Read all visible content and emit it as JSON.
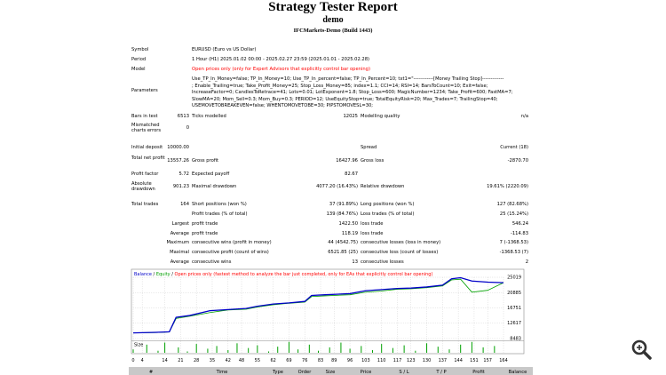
{
  "header": {
    "title": "Strategy Tester Report",
    "name": "demo",
    "server": "IFCMarkets-Demo (Build 1443)"
  },
  "rows": [
    [
      "Symbol",
      "EURUSD (Euro vs US Dollar)"
    ],
    [
      "Period",
      "1 Hour (H1) 2025.01.02 00:00 - 2025.02.27 23:59 (2025.01.01 - 2025.02.28)"
    ],
    [
      "Model",
      "Open prices only (only for Expert Advisors that explicitly control bar opening)"
    ],
    [
      "Parameters",
      "Use_TP_In_Money=false; TP_In_Money=10; Use_TP_In_percent=false; TP_In_Percent=10; txt1=\"------------[Money Trailing Stop]-------------",
      "; Enable_Trailing=true; Take_Profit_Money=25; Stop_Loss_Money=85; index=1.1; CCI=14; RSI=14; BarsToCount=10; Exit=false;",
      "IncreaseFactor=0; CandlesToRetrace=41; Lots=0.01; LotExponent=1.8; Stop_Loss=600; MagicNumber=1234; Take_Profit=600; FastMA=7;",
      "SlowMA=20; Mom_Sell=0.3; Mom_Buy=0.3; PERIOD=12; UseEquityStop=true; TotalEquityRisk=20; Max_Trades=7; TrailingStop=40;",
      "USEMOVETOBREAKEVEN=false; WHENTOMOVETOBE=30; PIPSTOMOVESL=30;"
    ],
    [
      "Bars in test",
      "6513",
      "Ticks modelled",
      "12025",
      "Modelling quality",
      "n/a"
    ],
    [
      "Mismatched charts errors",
      "0"
    ],
    [
      "Initial deposit",
      "10000.00",
      "Spread",
      "Current (18)"
    ],
    [
      "Total net profit",
      "13557.26",
      "Gross profit",
      "16427.96",
      "Gross loss",
      "-2870.70"
    ],
    [
      "Profit factor",
      "5.72",
      "Expected payoff",
      "82.67"
    ],
    [
      "Absolute drawdown",
      "901.23",
      "Maximal drawdown",
      "4077.20 (16.43%)",
      "Relative drawdown",
      "19.61% (2220.09)"
    ],
    [
      "Total trades",
      "164",
      "Short positions (won %)",
      "37 (91.89%)",
      "Long positions (won %)",
      "127 (82.68%)"
    ],
    [
      "Profit trades (% of total)",
      "139 (84.76%)",
      "Loss trades (% of total)",
      "25 (15.24%)"
    ],
    [
      "Largest",
      "profit trade",
      "1422.50",
      "loss trade",
      "546.24"
    ],
    [
      "Average",
      "profit trade",
      "118.19",
      "loss trade",
      "-114.83"
    ],
    [
      "Maximum",
      "consecutive wins (profit in money)",
      "44 (4542.75)",
      "consecutive losses (loss in money)",
      "7 (-1368.53)"
    ],
    [
      "Maximal",
      "consecutive profit (count of wins)",
      "6521.85 (25)",
      "consecutive loss (count of losses)",
      "-1368.53 (7)"
    ],
    [
      "Average",
      "consecutive wins",
      "13",
      "consecutive losses",
      "2"
    ]
  ],
  "chart_data": {
    "type": "line",
    "separator": "/",
    "subtitle": "Open prices only (fastest method to analyze the bar just completed, only for EAs that explicitly control bar opening)",
    "x": [
      0,
      10,
      16,
      19,
      25,
      34,
      42,
      50,
      55,
      62,
      69,
      76,
      79,
      85,
      96,
      103,
      110,
      117,
      123,
      130,
      137,
      141,
      145,
      150,
      157,
      164
    ],
    "series": [
      {
        "name": "Balance",
        "color": "#0000c8",
        "values": [
          10000,
          10150,
          10300,
          14200,
          14700,
          16000,
          16300,
          16600,
          17200,
          17800,
          18100,
          18500,
          20100,
          20300,
          20600,
          21400,
          21700,
          22000,
          22100,
          22400,
          22900,
          24600,
          24900,
          24000,
          23700,
          23557
        ]
      },
      {
        "name": "Equity",
        "color": "#00a000",
        "values": [
          10000,
          10100,
          10250,
          13900,
          14500,
          15500,
          16200,
          16400,
          17000,
          17600,
          18000,
          18300,
          19800,
          20000,
          20300,
          21000,
          21300,
          21800,
          21900,
          22200,
          22700,
          24300,
          24500,
          21000,
          21500,
          23557
        ]
      }
    ],
    "xlim": [
      0,
      164
    ],
    "xticks": [
      0,
      4,
      14,
      21,
      28,
      35,
      42,
      48,
      55,
      62,
      69,
      76,
      83,
      89,
      96,
      103,
      110,
      117,
      123,
      130,
      137,
      144,
      151,
      157,
      164
    ],
    "ylim": [
      8000,
      26700
    ],
    "yticks": [
      8483,
      12617,
      16751,
      20885,
      25019
    ],
    "grid": true,
    "size": {
      "name": "Size",
      "color": "#00a000",
      "ylim": [
        0,
        0.17
      ],
      "x": [
        0,
        6,
        11,
        14,
        20,
        24,
        28,
        33,
        37,
        42,
        46,
        51,
        55,
        60,
        64,
        69,
        73,
        78,
        82,
        87,
        92,
        96,
        101,
        106,
        110,
        115,
        120,
        125,
        130,
        135,
        140,
        145,
        150,
        155,
        160
      ],
      "values": [
        0.05,
        0.12,
        0.03,
        0.15,
        0.08,
        0.02,
        0.13,
        0.06,
        0.1,
        0.04,
        0.14,
        0.07,
        0.11,
        0.02,
        0.09,
        0.16,
        0.05,
        0.12,
        0.03,
        0.08,
        0.15,
        0.06,
        0.1,
        0.04,
        0.13,
        0.07,
        0.11,
        0.03,
        0.14,
        0.09,
        0.05,
        0.12,
        0.16,
        0.08,
        0.1
      ]
    }
  },
  "trades_header": [
    "#",
    "Time",
    "Type",
    "Order",
    "Size",
    "Price",
    "S / L",
    "T / P",
    "Profit",
    "Balance"
  ]
}
